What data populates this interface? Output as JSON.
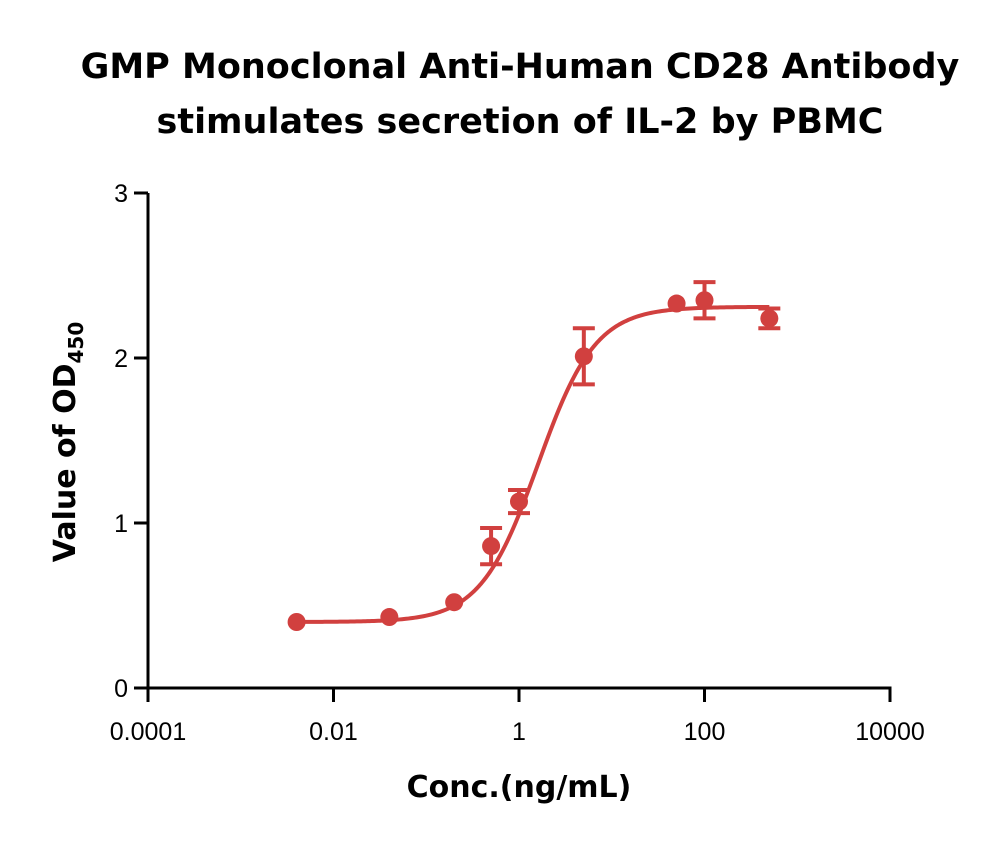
{
  "chart_data": {
    "type": "scatter",
    "title_lines": [
      "GMP Monoclonal Anti-Human CD28 Antibody",
      "stimulates secretion of IL-2 by PBMC"
    ],
    "xlabel": "Conc.(ng/mL)",
    "ylabel_main": "Value of OD",
    "ylabel_subscript": "450",
    "x_scale": "log",
    "xlim": [
      0.0001,
      10000
    ],
    "ylim": [
      0,
      3
    ],
    "x_ticks": [
      {
        "value": 0.0001,
        "label": "0.0001"
      },
      {
        "value": 0.01,
        "label": "0.01"
      },
      {
        "value": 1,
        "label": "1"
      },
      {
        "value": 100,
        "label": "100"
      },
      {
        "value": 10000,
        "label": "10000"
      }
    ],
    "y_ticks": [
      {
        "value": 0,
        "label": "0"
      },
      {
        "value": 1,
        "label": "1"
      },
      {
        "value": 2,
        "label": "2"
      },
      {
        "value": 3,
        "label": "3"
      }
    ],
    "grid": false,
    "legend": "none",
    "series": [
      {
        "color": "#d1403f",
        "points": [
          {
            "x": 0.004,
            "y": 0.4,
            "err": 0
          },
          {
            "x": 0.04,
            "y": 0.43,
            "err": 0
          },
          {
            "x": 0.2,
            "y": 0.52,
            "err": 0
          },
          {
            "x": 0.5,
            "y": 0.86,
            "err": 0.11
          },
          {
            "x": 1.0,
            "y": 1.13,
            "err": 0.07
          },
          {
            "x": 5.0,
            "y": 2.01,
            "err": 0.17
          },
          {
            "x": 50,
            "y": 2.33,
            "err": 0
          },
          {
            "x": 100,
            "y": 2.35,
            "err": 0.11
          },
          {
            "x": 500,
            "y": 2.24,
            "err": 0.06
          }
        ],
        "fit": {
          "bottom": 0.4,
          "top": 2.31,
          "ec50": 1.6,
          "hill": 1.4,
          "x_range": [
            0.004,
            500
          ]
        }
      }
    ]
  }
}
